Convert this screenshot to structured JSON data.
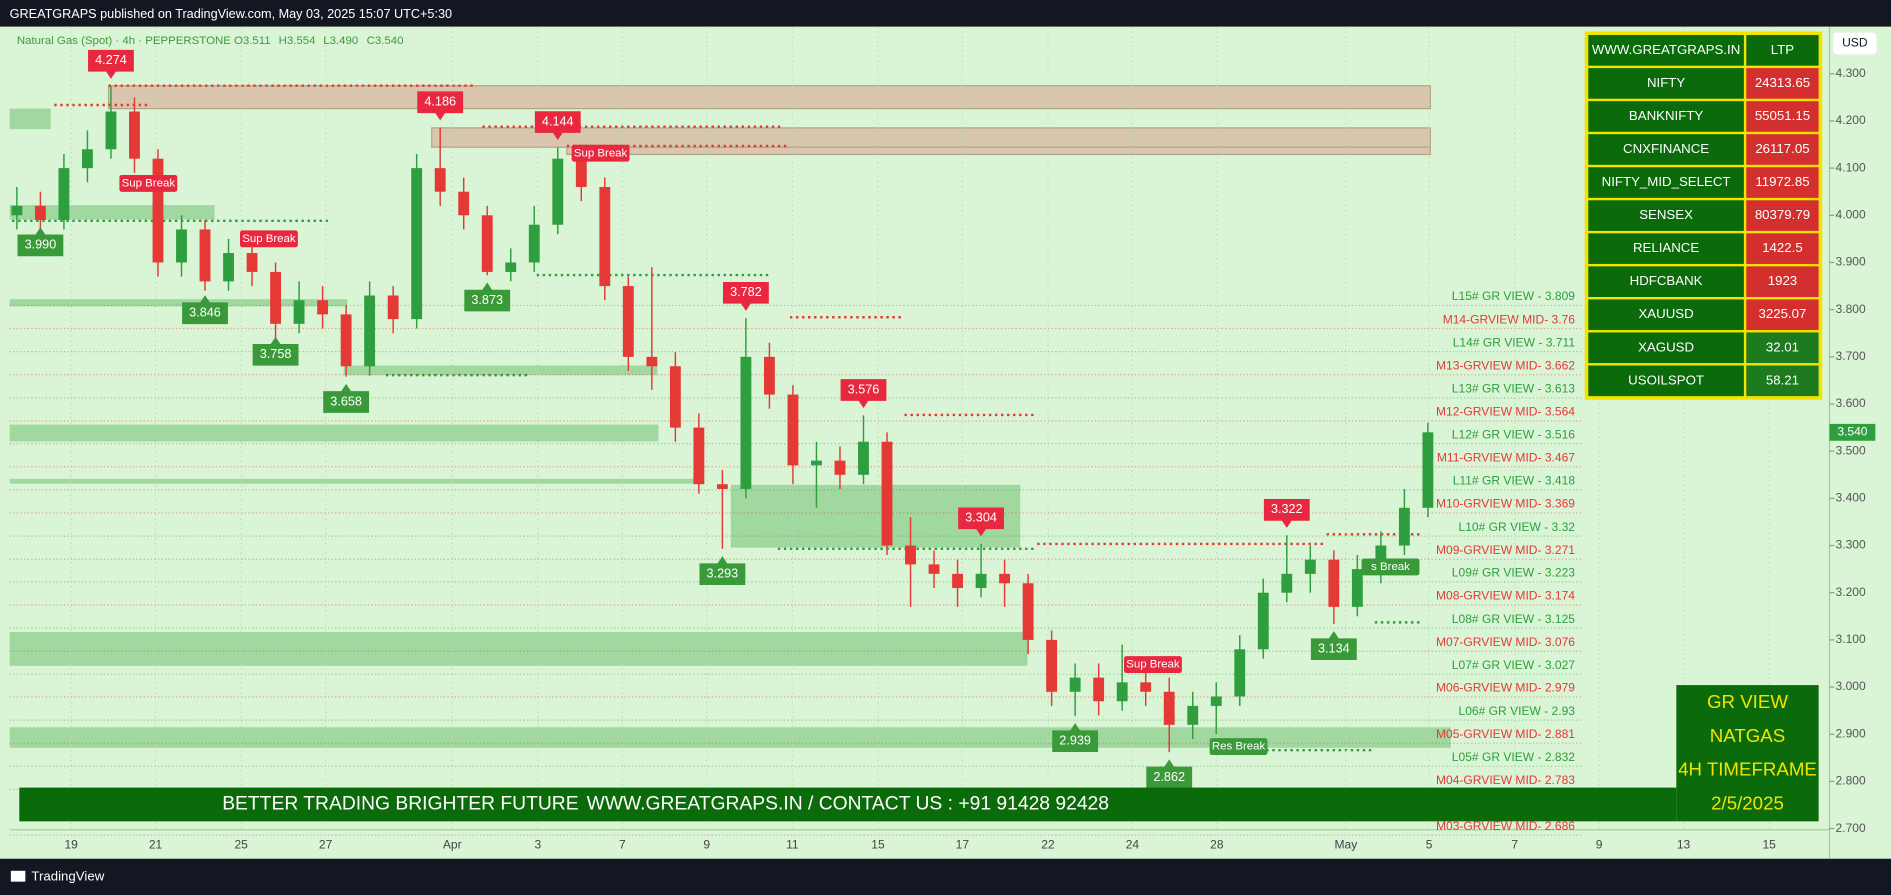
{
  "header": {
    "published": "GREATGRAPS published on TradingView.com, May 03, 2025 15:07 UTC+5:30",
    "currency": "USD"
  },
  "chart_data": {
    "type": "candlestick",
    "title": "Natural Gas (Spot) · 4h · PEPPERSTONE",
    "ohlc_legend": [
      "O3.511",
      "H3.554",
      "L3.490",
      "C3.540"
    ],
    "open": [
      4.0,
      4.02,
      3.99,
      4.1,
      4.14,
      4.22,
      4.12,
      3.9,
      3.97,
      3.86,
      3.92,
      3.88,
      3.77,
      3.82,
      3.79,
      3.68,
      3.83,
      3.78,
      4.1,
      4.05,
      4.0,
      3.88,
      3.9,
      3.98,
      4.12,
      4.06,
      3.85,
      3.7,
      3.68,
      3.55,
      3.43,
      3.42,
      3.7,
      3.62,
      3.47,
      3.48,
      3.45,
      3.52,
      3.3,
      3.26,
      3.24,
      3.21,
      3.24,
      3.22,
      3.1,
      2.99,
      3.02,
      2.97,
      3.01,
      2.99,
      2.92,
      2.96,
      2.98,
      3.08,
      3.2,
      3.24,
      3.27,
      3.17,
      3.25,
      3.3,
      3.38
    ],
    "high": [
      4.06,
      4.05,
      4.13,
      4.18,
      4.274,
      4.25,
      4.14,
      4.0,
      3.99,
      3.95,
      3.95,
      3.9,
      3.86,
      3.85,
      3.81,
      3.86,
      3.85,
      4.13,
      4.186,
      4.08,
      4.02,
      3.93,
      4.02,
      4.144,
      4.14,
      4.08,
      3.87,
      3.89,
      3.71,
      3.58,
      3.46,
      3.782,
      3.73,
      3.64,
      3.52,
      3.51,
      3.576,
      3.54,
      3.36,
      3.29,
      3.27,
      3.304,
      3.27,
      3.24,
      3.12,
      3.05,
      3.05,
      3.09,
      3.04,
      3.02,
      2.99,
      3.01,
      3.11,
      3.23,
      3.322,
      3.3,
      3.29,
      3.28,
      3.33,
      3.42,
      3.56
    ],
    "low": [
      3.97,
      3.96,
      3.97,
      4.07,
      4.12,
      4.09,
      3.87,
      3.87,
      3.84,
      3.84,
      3.85,
      3.74,
      3.75,
      3.76,
      3.658,
      3.66,
      3.75,
      3.76,
      4.02,
      3.97,
      3.873,
      3.86,
      3.88,
      3.96,
      4.03,
      3.82,
      3.67,
      3.63,
      3.52,
      3.41,
      3.293,
      3.4,
      3.59,
      3.43,
      3.38,
      3.42,
      3.43,
      3.28,
      3.17,
      3.21,
      3.17,
      3.19,
      3.17,
      3.07,
      2.96,
      2.939,
      2.94,
      2.95,
      2.96,
      2.862,
      2.89,
      2.9,
      2.96,
      3.06,
      3.18,
      3.2,
      3.134,
      3.15,
      3.22,
      3.28,
      3.36
    ],
    "close": [
      4.02,
      3.99,
      4.1,
      4.14,
      4.22,
      4.12,
      3.9,
      3.97,
      3.86,
      3.92,
      3.88,
      3.77,
      3.82,
      3.79,
      3.68,
      3.83,
      3.78,
      4.1,
      4.05,
      4.0,
      3.88,
      3.9,
      3.98,
      4.12,
      4.06,
      3.85,
      3.7,
      3.68,
      3.55,
      3.43,
      3.42,
      3.7,
      3.62,
      3.47,
      3.48,
      3.45,
      3.52,
      3.3,
      3.26,
      3.24,
      3.21,
      3.24,
      3.22,
      3.1,
      2.99,
      3.02,
      2.97,
      3.01,
      2.99,
      2.92,
      2.96,
      2.98,
      3.08,
      3.2,
      3.24,
      3.27,
      3.17,
      3.25,
      3.3,
      3.38,
      3.54
    ],
    "up_color": "#2e9e3e",
    "down_color": "#e53935",
    "ylim": [
      2.7,
      4.4
    ],
    "yticks": [
      {
        "value": 2.7,
        "label": "2.700"
      },
      {
        "value": 2.8,
        "label": "2.800"
      },
      {
        "value": 2.9,
        "label": "2.900"
      },
      {
        "value": 3.0,
        "label": "3.000"
      },
      {
        "value": 3.1,
        "label": "3.100"
      },
      {
        "value": 3.2,
        "label": "3.200"
      },
      {
        "value": 3.3,
        "label": "3.300"
      },
      {
        "value": 3.4,
        "label": "3.400"
      },
      {
        "value": 3.5,
        "label": "3.500"
      },
      {
        "value": 3.6,
        "label": "3.600"
      },
      {
        "value": 3.7,
        "label": "3.700"
      },
      {
        "value": 3.8,
        "label": "3.800"
      },
      {
        "value": 3.9,
        "label": "3.900"
      },
      {
        "value": 4.0,
        "label": "4.000"
      },
      {
        "value": 4.1,
        "label": "4.100"
      },
      {
        "value": 4.2,
        "label": "4.200"
      },
      {
        "value": 4.3,
        "label": "4.300"
      }
    ],
    "xtick_labels": [
      "19",
      "21",
      "25",
      "27",
      "Apr",
      "3",
      "7",
      "9",
      "11",
      "15",
      "17",
      "22",
      "24",
      "28",
      "May",
      "5",
      "7",
      "9",
      "13",
      "15"
    ],
    "last_price": {
      "value": 3.54,
      "label": "3.540"
    },
    "high_labels": [
      4.274,
      4.186,
      4.144,
      3.782,
      3.576,
      3.304,
      3.322
    ],
    "low_labels": [
      {
        "value": 3.99,
        "label": "3.990"
      },
      3.846,
      3.758,
      3.658,
      3.873,
      3.293,
      2.939,
      2.862,
      3.134
    ],
    "break_labels": [
      "Sup Break",
      "Sup Break",
      "Sup Break",
      "Sup Break",
      "Res Break",
      "s Break"
    ],
    "levels": [
      {
        "label": "L15# GR VIEW -  3.809",
        "value": 3.809
      },
      {
        "label": "M14-GRVIEW MID- 3.76",
        "value": 3.76
      },
      {
        "label": "L14# GR VIEW -  3.711",
        "value": 3.711
      },
      {
        "label": "M13-GRVIEW MID- 3.662",
        "value": 3.662
      },
      {
        "label": "L13# GR VIEW -  3.613",
        "value": 3.613
      },
      {
        "label": "M12-GRVIEW MID- 3.564",
        "value": 3.564
      },
      {
        "label": "L12# GR VIEW -  3.516",
        "value": 3.516
      },
      {
        "label": "M11-GRVIEW MID- 3.467",
        "value": 3.467
      },
      {
        "label": "L11# GR VIEW -  3.418",
        "value": 3.418
      },
      {
        "label": "M10-GRVIEW MID- 3.369",
        "value": 3.369
      },
      {
        "label": "L10# GR VIEW -  3.32",
        "value": 3.32
      },
      {
        "label": "M09-GRVIEW MID- 3.271",
        "value": 3.271
      },
      {
        "label": "L09# GR VIEW -  3.223",
        "value": 3.223
      },
      {
        "label": "M08-GRVIEW MID- 3.174",
        "value": 3.174
      },
      {
        "label": "L08# GR VIEW -  3.125",
        "value": 3.125
      },
      {
        "label": "M07-GRVIEW MID- 3.076",
        "value": 3.076
      },
      {
        "label": "L07# GR VIEW -  3.027",
        "value": 3.027
      },
      {
        "label": "M06-GRVIEW MID- 2.979",
        "value": 2.979
      },
      {
        "label": "L06# GR VIEW -  2.93",
        "value": 2.93
      },
      {
        "label": "M05-GRVIEW MID- 2.881",
        "value": 2.881
      },
      {
        "label": "L05# GR VIEW -  2.832",
        "value": 2.832
      },
      {
        "label": "M04-GRVIEW MID- 2.783",
        "value": 2.783
      },
      {
        "label": "M03-GRVIEW MID- 2.686",
        "value": 2.686
      }
    ]
  },
  "table": {
    "header": [
      "WWW.GREATGRAPS.IN",
      "LTP"
    ],
    "rows": [
      {
        "name": "NIFTY",
        "ltp": 24313.65,
        "color": "#d32f2f"
      },
      {
        "name": "BANKNIFTY",
        "ltp": 55051.15,
        "color": "#d32f2f"
      },
      {
        "name": "CNXFINANCE",
        "ltp": 26117.05,
        "color": "#d32f2f"
      },
      {
        "name": "NIFTY_MID_SELECT",
        "ltp": 11972.85,
        "color": "#d32f2f"
      },
      {
        "name": "SENSEX",
        "ltp": 80379.79,
        "color": "#d32f2f"
      },
      {
        "name": "RELIANCE",
        "ltp": 1422.5,
        "color": "#d32f2f"
      },
      {
        "name": "HDFCBANK",
        "ltp": 1923,
        "color": "#d32f2f"
      },
      {
        "name": "XAUUSD",
        "ltp": 3225.07,
        "color": "#d32f2f"
      },
      {
        "name": "XAGUSD",
        "ltp": 32.01,
        "color": "#1e7a1e"
      },
      {
        "name": "USOILSPOT",
        "ltp": 58.21,
        "color": "#1e7a1e"
      }
    ]
  },
  "banner": {
    "tagline": "BETTER TRADING BRIGHTER FUTURE",
    "contact": "WWW.GREATGRAPS.IN / CONTACT US : +91 91428 92428"
  },
  "info_box": {
    "lines": [
      "GR VIEW",
      "NATGAS",
      "4H TIMEFRAME",
      "2/5/2025"
    ]
  },
  "footer": {
    "brand": "TradingView"
  }
}
